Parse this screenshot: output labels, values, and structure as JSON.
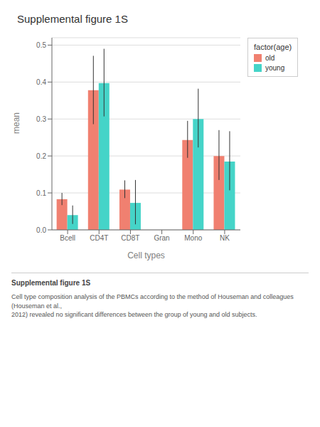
{
  "chart_data": {
    "type": "bar",
    "title": "Supplemental figure 1S",
    "x_label": "Cell types",
    "y_label": "mean",
    "categories": [
      "Bcell",
      "CD4T",
      "CD8T",
      "Gran",
      "Mono",
      "NK"
    ],
    "series": [
      {
        "name": "old",
        "color": "#F08070",
        "values": [
          0.083,
          0.378,
          0.109,
          0.0,
          0.243,
          0.2
        ],
        "error_low": [
          0.016,
          0.092,
          0.023,
          0.0,
          0.048,
          0.065
        ],
        "error_high": [
          0.017,
          0.093,
          0.025,
          0.0,
          0.052,
          0.07
        ]
      },
      {
        "name": "young",
        "color": "#45D4C8",
        "values": [
          0.04,
          0.397,
          0.073,
          0.0,
          0.3,
          0.185
        ],
        "error_low": [
          0.024,
          0.09,
          0.058,
          0.0,
          0.077,
          0.078
        ],
        "error_high": [
          0.026,
          0.093,
          0.062,
          0.0,
          0.082,
          0.082
        ]
      }
    ],
    "ylim": [
      0.0,
      0.52
    ],
    "yticks": [
      {
        "value": 0.0,
        "label": "0.0"
      },
      0.1,
      0.2,
      0.3,
      0.4,
      0.5
    ],
    "grid": true,
    "legend": "right",
    "legend_title": "factor(age)",
    "annotations": [
      "Supplemental figure 1S",
      "Cell type composition analysis of the PBMCs according to the method of Houseman and colleagues (Houseman et al.,\n2012) revealed no significant differences between the group of young and old subjects."
    ]
  }
}
